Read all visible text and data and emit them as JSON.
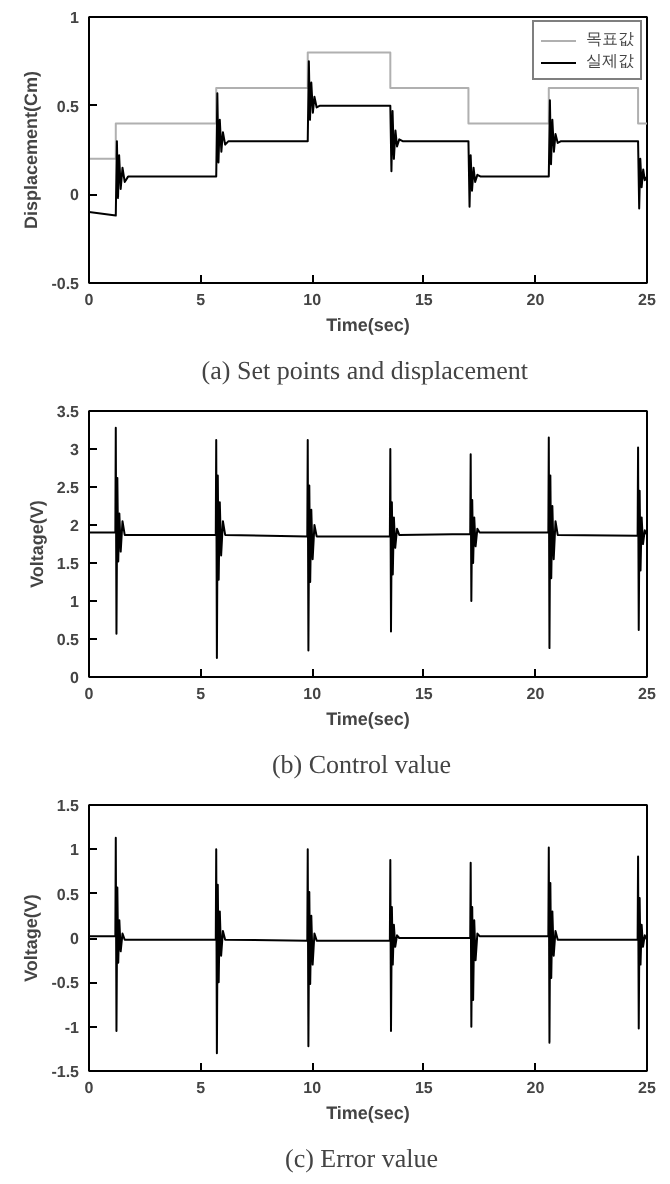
{
  "chart_data": [
    {
      "type": "line",
      "title": "(a)  Set points and displacement",
      "xlabel": "Time(sec)",
      "ylabel": "Displacement(Cm)",
      "xlim": [
        0,
        25
      ],
      "xticks": [
        0,
        5,
        10,
        15,
        20,
        25
      ],
      "ylim": [
        -0.5,
        1
      ],
      "yticks": [
        -0.5,
        0,
        0.5,
        1
      ],
      "grid": false,
      "legend": "top right",
      "series": [
        {
          "name": "목표값",
          "type": "step",
          "color": "#b0b0b0",
          "x": [
            0,
            1.2,
            5.7,
            9.8,
            13.5,
            17.0,
            20.6,
            24.6,
            25
          ],
          "values": [
            0.2,
            0.4,
            0.6,
            0.8,
            0.6,
            0.4,
            0.6,
            0.4,
            0.4
          ]
        },
        {
          "name": "실제값",
          "type": "line",
          "color": "#000000",
          "x": [
            0,
            1.2,
            1.25,
            1.3,
            1.35,
            1.42,
            1.5,
            1.6,
            1.75,
            5.7,
            5.75,
            5.8,
            5.86,
            5.93,
            6.0,
            6.1,
            6.25,
            9.8,
            9.85,
            9.9,
            9.96,
            10.03,
            10.1,
            10.2,
            10.35,
            13.5,
            13.55,
            13.6,
            13.66,
            13.73,
            13.8,
            13.9,
            14.05,
            17.0,
            17.05,
            17.1,
            17.16,
            17.23,
            17.3,
            17.4,
            17.55,
            20.6,
            20.65,
            20.7,
            20.76,
            20.83,
            20.9,
            21.0,
            21.15,
            24.6,
            24.65,
            24.7,
            24.76,
            24.83,
            24.9,
            25
          ],
          "values": [
            -0.1,
            -0.12,
            0.3,
            -0.02,
            0.22,
            0.03,
            0.15,
            0.07,
            0.1,
            0.1,
            0.57,
            0.18,
            0.42,
            0.24,
            0.35,
            0.28,
            0.3,
            0.3,
            0.75,
            0.42,
            0.63,
            0.46,
            0.55,
            0.49,
            0.5,
            0.5,
            0.13,
            0.47,
            0.2,
            0.36,
            0.27,
            0.31,
            0.3,
            0.3,
            -0.07,
            0.22,
            0.02,
            0.15,
            0.07,
            0.11,
            0.1,
            0.1,
            0.53,
            0.17,
            0.42,
            0.24,
            0.34,
            0.29,
            0.3,
            0.3,
            -0.08,
            0.2,
            0.04,
            0.14,
            0.08,
            0.1
          ]
        }
      ]
    },
    {
      "type": "line",
      "title": "(b)  Control  value",
      "xlabel": "Time(sec)",
      "ylabel": "Voltage(V)",
      "xlim": [
        0,
        25
      ],
      "xticks": [
        0,
        5,
        10,
        15,
        20,
        25
      ],
      "ylim": [
        0,
        3.5
      ],
      "yticks": [
        0,
        0.5,
        1,
        1.5,
        2,
        2.5,
        3,
        3.5
      ],
      "grid": false,
      "series": [
        {
          "color": "#000000",
          "x": [
            0,
            1.18,
            1.2,
            1.23,
            1.27,
            1.31,
            1.36,
            1.42,
            1.5,
            1.6,
            5.68,
            5.7,
            5.73,
            5.77,
            5.81,
            5.86,
            5.92,
            6.0,
            6.1,
            9.78,
            9.8,
            9.83,
            9.87,
            9.91,
            9.96,
            10.02,
            10.1,
            10.2,
            13.48,
            13.5,
            13.53,
            13.57,
            13.61,
            13.66,
            13.72,
            13.8,
            13.9,
            17.08,
            17.1,
            17.13,
            17.17,
            17.21,
            17.26,
            17.32,
            17.4,
            17.5,
            20.58,
            20.6,
            20.63,
            20.67,
            20.71,
            20.76,
            20.82,
            20.9,
            21.0,
            24.58,
            24.6,
            24.63,
            24.67,
            24.71,
            24.76,
            24.82,
            24.9,
            25
          ],
          "values": [
            1.9,
            1.9,
            3.28,
            0.57,
            2.62,
            1.52,
            2.15,
            1.65,
            2.05,
            1.87,
            1.87,
            3.12,
            0.25,
            2.65,
            1.28,
            2.3,
            1.6,
            2.05,
            1.87,
            1.85,
            3.12,
            0.35,
            2.52,
            1.25,
            2.2,
            1.55,
            2.0,
            1.85,
            1.85,
            3.0,
            0.6,
            2.3,
            1.35,
            2.1,
            1.7,
            1.95,
            1.87,
            1.88,
            2.93,
            1.0,
            2.33,
            1.5,
            2.1,
            1.72,
            1.95,
            1.9,
            1.9,
            3.15,
            0.38,
            2.65,
            1.3,
            2.25,
            1.55,
            2.05,
            1.87,
            1.86,
            3.02,
            0.62,
            2.45,
            1.4,
            2.1,
            1.75,
            1.93,
            1.87
          ]
        }
      ]
    },
    {
      "type": "line",
      "title": "(c)  Error  value",
      "xlabel": "Time(sec)",
      "ylabel": "Voltage(V)",
      "xlim": [
        0,
        25
      ],
      "xticks": [
        0,
        5,
        10,
        15,
        20,
        25
      ],
      "ylim": [
        -1.5,
        1.5
      ],
      "yticks": [
        -1.5,
        -1,
        -0.5,
        0,
        0.5,
        1,
        1.5
      ],
      "grid": false,
      "series": [
        {
          "color": "#000000",
          "x": [
            0,
            1.18,
            1.2,
            1.23,
            1.27,
            1.31,
            1.36,
            1.42,
            1.5,
            1.6,
            5.68,
            5.7,
            5.73,
            5.77,
            5.81,
            5.86,
            5.92,
            6.0,
            6.1,
            9.78,
            9.8,
            9.83,
            9.87,
            9.91,
            9.96,
            10.02,
            10.1,
            10.2,
            13.48,
            13.5,
            13.53,
            13.57,
            13.61,
            13.66,
            13.72,
            13.8,
            13.9,
            17.08,
            17.1,
            17.13,
            17.17,
            17.21,
            17.26,
            17.32,
            17.4,
            17.5,
            20.58,
            20.6,
            20.63,
            20.67,
            20.71,
            20.76,
            20.82,
            20.9,
            21.0,
            24.58,
            24.6,
            24.63,
            24.67,
            24.71,
            24.76,
            24.82,
            24.9,
            25
          ],
          "values": [
            0.02,
            0.02,
            1.13,
            -1.05,
            0.57,
            -0.28,
            0.2,
            -0.15,
            0.05,
            -0.02,
            -0.02,
            1.0,
            -1.3,
            0.6,
            -0.5,
            0.3,
            -0.2,
            0.08,
            -0.02,
            -0.03,
            1.0,
            -1.22,
            0.52,
            -0.52,
            0.25,
            -0.3,
            0.05,
            -0.03,
            -0.03,
            0.88,
            -1.05,
            0.35,
            -0.3,
            0.15,
            -0.1,
            0.03,
            0.0,
            0.0,
            0.85,
            -1.0,
            0.35,
            -0.7,
            0.2,
            -0.25,
            0.05,
            0.02,
            0.02,
            1.02,
            -1.18,
            0.62,
            -0.45,
            0.3,
            -0.2,
            0.08,
            -0.02,
            -0.02,
            0.92,
            -1.02,
            0.45,
            -0.3,
            0.15,
            -0.1,
            0.03,
            -0.02
          ]
        }
      ]
    }
  ]
}
